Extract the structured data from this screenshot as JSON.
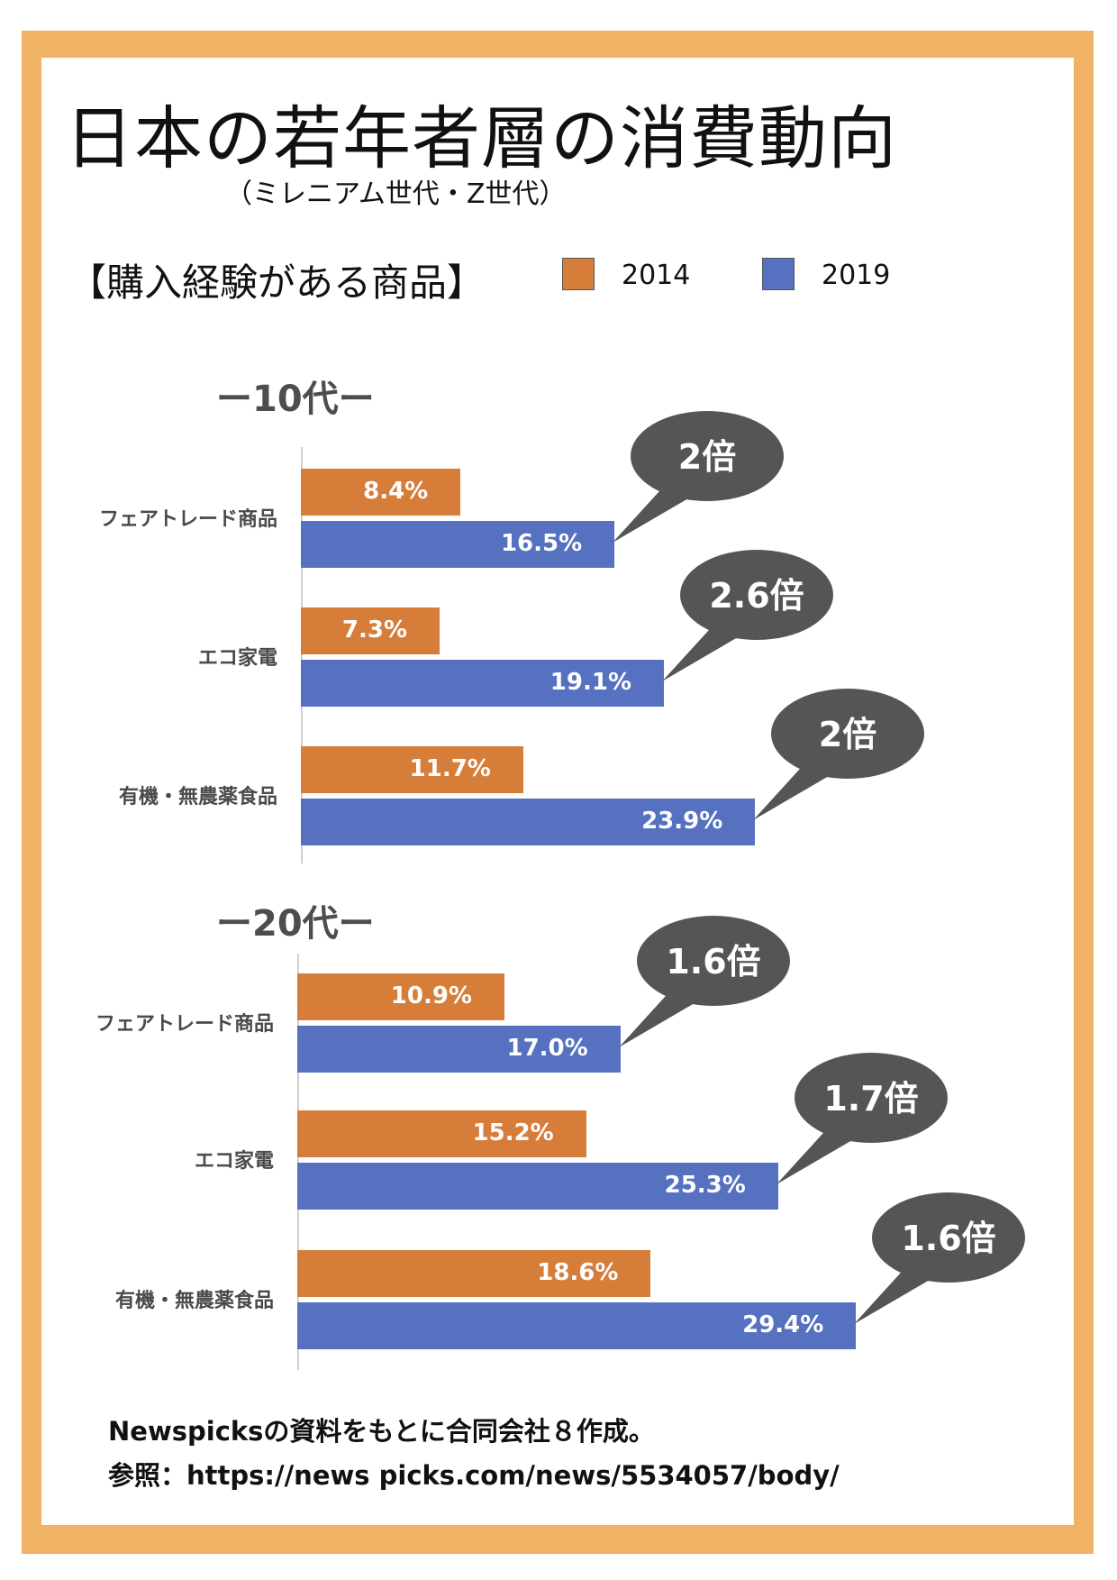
{
  "title": "日本の若年者層の消費動向",
  "subtitle": "（ミレニアム世代・Z世代）",
  "section_label": "【購入経験がある商品】",
  "legend": [
    {
      "name": "2014",
      "color": "#d67d3a"
    },
    {
      "name": "2019",
      "color": "#5671c0"
    }
  ],
  "colors": {
    "border": "#f0b366",
    "bubble": "#555555",
    "bar_2014": "#d67d3a",
    "bar_2019": "#5671c0"
  },
  "chart_data": [
    {
      "type": "bar",
      "title": "ー10代ー",
      "categories": [
        "フェアトレード商品",
        "エコ家電",
        "有機・無農薬食品"
      ],
      "series": [
        {
          "name": "2014",
          "values": [
            8.4,
            7.3,
            11.7
          ],
          "labels": [
            "8.4%",
            "7.3%",
            "11.7%"
          ]
        },
        {
          "name": "2019",
          "values": [
            16.5,
            19.1,
            23.9
          ],
          "labels": [
            "16.5%",
            "19.1%",
            "23.9%"
          ]
        }
      ],
      "annotations": [
        "2倍",
        "2.6倍",
        "2倍"
      ],
      "orientation": "horizontal"
    },
    {
      "type": "bar",
      "title": "ー20代ー",
      "categories": [
        "フェアトレード商品",
        "エコ家電",
        "有機・無農薬食品"
      ],
      "series": [
        {
          "name": "2014",
          "values": [
            10.9,
            15.2,
            18.6
          ],
          "labels": [
            "10.9%",
            "15.2%",
            "18.6%"
          ]
        },
        {
          "name": "2019",
          "values": [
            17.0,
            25.3,
            29.4
          ],
          "labels": [
            "17.0%",
            "25.3%",
            "29.4%"
          ]
        }
      ],
      "annotations": [
        "1.6倍",
        "1.7倍",
        "1.6倍"
      ],
      "orientation": "horizontal"
    }
  ],
  "footer": {
    "line1": "Newspicksの資料をもとに合同会社８作成。",
    "line2": "参照：https://news picks.com/news/5534057/body/"
  }
}
